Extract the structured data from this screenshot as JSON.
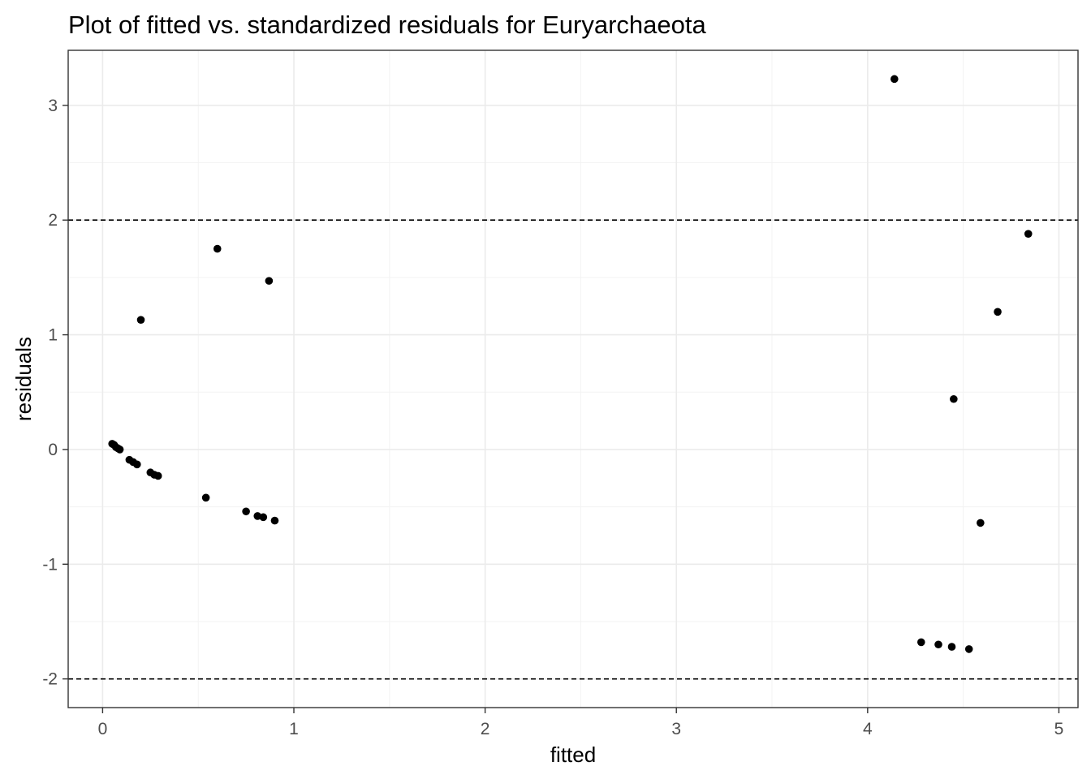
{
  "chart_data": {
    "type": "scatter",
    "title": "Plot of fitted vs. standardized residuals for Euryarchaeota",
    "xlabel": "fitted",
    "ylabel": "residuals",
    "xlim": [
      -0.18,
      5.1
    ],
    "ylim": [
      -2.25,
      3.48
    ],
    "x_ticks": [
      0,
      1,
      2,
      3,
      4,
      5
    ],
    "x_tick_labels": [
      "0",
      "1",
      "2",
      "3",
      "4",
      "5"
    ],
    "y_ticks": [
      -2,
      -1,
      0,
      1,
      2,
      3
    ],
    "y_tick_labels": [
      "-2",
      "-1",
      "0",
      "1",
      "2",
      "3"
    ],
    "x_minor": [
      0.5,
      1.5,
      2.5,
      3.5,
      4.5
    ],
    "y_minor": [
      -1.5,
      -0.5,
      0.5,
      1.5,
      2.5
    ],
    "grid": true,
    "reference_lines": [
      2,
      -2
    ],
    "points": [
      {
        "x": 0.05,
        "y": 0.05
      },
      {
        "x": 0.06,
        "y": 0.04
      },
      {
        "x": 0.07,
        "y": 0.02
      },
      {
        "x": 0.08,
        "y": 0.01
      },
      {
        "x": 0.09,
        "y": 0.0
      },
      {
        "x": 0.14,
        "y": -0.09
      },
      {
        "x": 0.16,
        "y": -0.11
      },
      {
        "x": 0.18,
        "y": -0.13
      },
      {
        "x": 0.2,
        "y": 1.13
      },
      {
        "x": 0.25,
        "y": -0.2
      },
      {
        "x": 0.27,
        "y": -0.22
      },
      {
        "x": 0.29,
        "y": -0.23
      },
      {
        "x": 0.54,
        "y": -0.42
      },
      {
        "x": 0.6,
        "y": 1.75
      },
      {
        "x": 0.75,
        "y": -0.54
      },
      {
        "x": 0.81,
        "y": -0.58
      },
      {
        "x": 0.84,
        "y": -0.59
      },
      {
        "x": 0.87,
        "y": 1.47
      },
      {
        "x": 0.9,
        "y": -0.62
      },
      {
        "x": 4.14,
        "y": 3.23
      },
      {
        "x": 4.28,
        "y": -1.68
      },
      {
        "x": 4.37,
        "y": -1.7
      },
      {
        "x": 4.44,
        "y": -1.72
      },
      {
        "x": 4.45,
        "y": 0.44
      },
      {
        "x": 4.53,
        "y": -1.74
      },
      {
        "x": 4.59,
        "y": -0.64
      },
      {
        "x": 4.68,
        "y": 1.2
      },
      {
        "x": 4.84,
        "y": 1.88
      }
    ]
  }
}
